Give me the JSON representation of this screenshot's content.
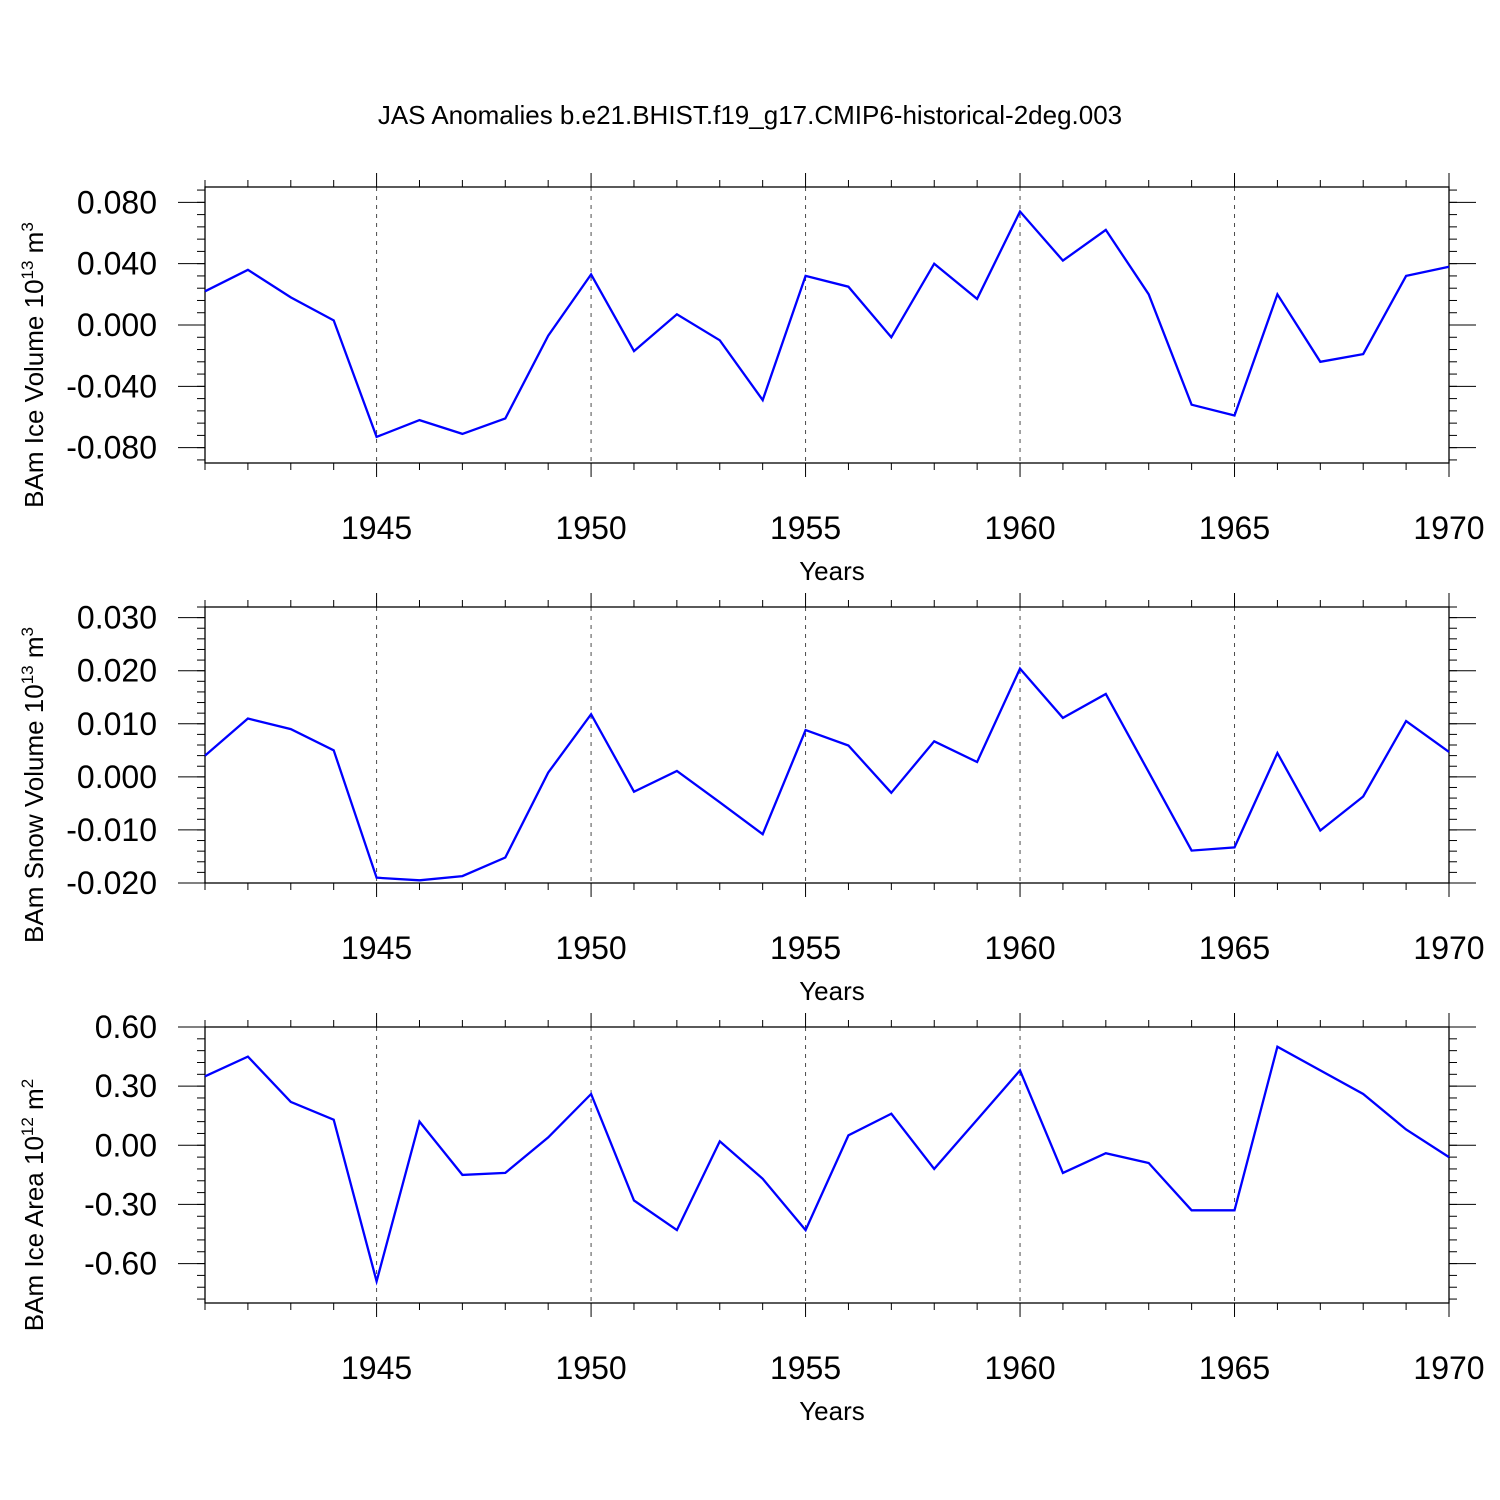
{
  "title": "JAS Anomalies b.e21.BHIST.f19_g17.CMIP6-historical-2deg.003",
  "colors": {
    "series": "#0000ff",
    "axis": "#000000",
    "gridline": "#000000"
  },
  "chart_data": [
    {
      "type": "line",
      "ylabel_main": "BAm Ice Volume 10",
      "ylabel_exp": "13",
      "ylabel_tail": " m",
      "ylabel_tail_exp": "3",
      "xlabel": "Years",
      "xlim": [
        1941,
        1970
      ],
      "ylim": [
        -0.09,
        0.09
      ],
      "yticks": [
        -0.08,
        -0.04,
        0.0,
        0.04,
        0.08
      ],
      "ytick_labels": [
        "-0.080",
        "-0.040",
        "0.000",
        "0.040",
        "0.080"
      ],
      "xticks": [
        1945,
        1950,
        1955,
        1960,
        1965,
        1970
      ],
      "xtick_labels": [
        "1945",
        "1950",
        "1955",
        "1960",
        "1965",
        "1970"
      ],
      "x": [
        1941,
        1942,
        1943,
        1944,
        1945,
        1946,
        1947,
        1948,
        1949,
        1950,
        1951,
        1952,
        1953,
        1954,
        1955,
        1956,
        1957,
        1958,
        1959,
        1960,
        1961,
        1962,
        1963,
        1964,
        1965,
        1966,
        1967,
        1968,
        1969,
        1970
      ],
      "values": [
        0.022,
        0.036,
        0.018,
        0.003,
        -0.073,
        -0.062,
        -0.071,
        -0.061,
        -0.007,
        0.033,
        -0.017,
        0.007,
        -0.01,
        -0.049,
        0.032,
        0.025,
        -0.008,
        0.04,
        0.017,
        0.074,
        0.042,
        0.062,
        0.02,
        -0.052,
        -0.059,
        0.02,
        -0.024,
        -0.019,
        0.032,
        0.038
      ]
    },
    {
      "type": "line",
      "ylabel_main": "BAm Snow Volume 10",
      "ylabel_exp": "13",
      "ylabel_tail": " m",
      "ylabel_tail_exp": "3",
      "xlabel": "Years",
      "xlim": [
        1941,
        1970
      ],
      "ylim": [
        -0.02,
        0.032
      ],
      "yticks": [
        -0.02,
        -0.01,
        0.0,
        0.01,
        0.02,
        0.03
      ],
      "ytick_labels": [
        "-0.020",
        "-0.010",
        "0.000",
        "0.010",
        "0.020",
        "0.030"
      ],
      "xticks": [
        1945,
        1950,
        1955,
        1960,
        1965,
        1970
      ],
      "xtick_labels": [
        "1945",
        "1950",
        "1955",
        "1960",
        "1965",
        "1970"
      ],
      "x": [
        1941,
        1942,
        1943,
        1944,
        1945,
        1946,
        1947,
        1948,
        1949,
        1950,
        1951,
        1952,
        1953,
        1954,
        1955,
        1956,
        1957,
        1958,
        1959,
        1960,
        1961,
        1962,
        1963,
        1964,
        1965,
        1966,
        1967,
        1968,
        1969,
        1970
      ],
      "values": [
        0.004,
        0.011,
        0.009,
        0.005,
        -0.019,
        -0.0195,
        -0.0187,
        -0.0152,
        0.0008,
        0.0118,
        -0.0028,
        0.0011,
        -0.0048,
        -0.0108,
        0.0088,
        0.0059,
        -0.003,
        0.0067,
        0.0028,
        0.0204,
        0.0111,
        0.0156,
        0.0009,
        -0.0139,
        -0.0133,
        0.0045,
        -0.0101,
        -0.0037,
        0.0105,
        0.0047
      ]
    },
    {
      "type": "line",
      "ylabel_main": "BAm Ice Area 10",
      "ylabel_exp": "12",
      "ylabel_tail": " m",
      "ylabel_tail_exp": "2",
      "xlabel": "Years",
      "xlim": [
        1941,
        1970
      ],
      "ylim": [
        -0.8,
        0.6
      ],
      "yticks": [
        -0.6,
        -0.3,
        0.0,
        0.3,
        0.6
      ],
      "ytick_labels": [
        "-0.60",
        "-0.30",
        "0.00",
        "0.30",
        "0.60"
      ],
      "xticks": [
        1945,
        1950,
        1955,
        1960,
        1965,
        1970
      ],
      "xtick_labels": [
        "1945",
        "1950",
        "1955",
        "1960",
        "1965",
        "1970"
      ],
      "x": [
        1941,
        1942,
        1943,
        1944,
        1945,
        1946,
        1947,
        1948,
        1949,
        1950,
        1951,
        1952,
        1953,
        1954,
        1955,
        1956,
        1957,
        1958,
        1959,
        1960,
        1961,
        1962,
        1963,
        1964,
        1965,
        1966,
        1967,
        1968,
        1969,
        1970
      ],
      "values": [
        0.35,
        0.45,
        0.22,
        0.13,
        -0.69,
        0.12,
        -0.15,
        -0.14,
        0.04,
        0.26,
        -0.28,
        -0.43,
        0.02,
        -0.17,
        -0.43,
        0.05,
        0.16,
        -0.12,
        0.13,
        0.38,
        -0.14,
        -0.04,
        -0.09,
        -0.33,
        -0.33,
        0.5,
        0.38,
        0.26,
        0.08,
        -0.06
      ]
    }
  ]
}
